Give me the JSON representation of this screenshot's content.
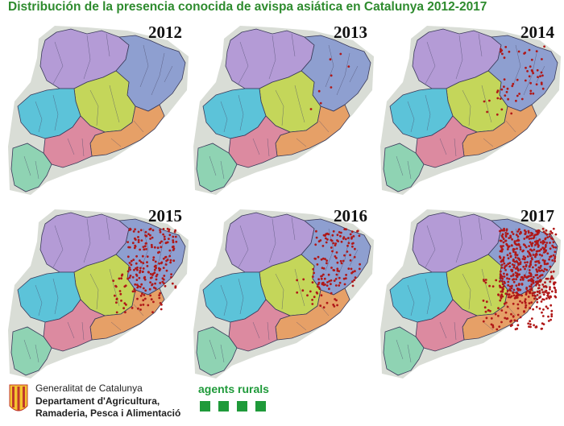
{
  "title": "Distribución de la presencia conocida de avispa asiática en Catalunya 2012-2017",
  "panels": [
    {
      "year": "2012",
      "sightings": 0
    },
    {
      "year": "2013",
      "sightings": 8
    },
    {
      "year": "2014",
      "sightings": 60
    },
    {
      "year": "2015",
      "sightings": 220
    },
    {
      "year": "2016",
      "sightings": 150
    },
    {
      "year": "2017",
      "sightings": 600
    }
  ],
  "colors": {
    "title": "#2e8b2e",
    "girona": "#8e9fd0",
    "lleida_north": "#b49bd6",
    "central": "#c4d65a",
    "lleida_south": "#5cc3d9",
    "barcelona": "#e6a067",
    "tarragona": "#dc8aa0",
    "terres_ebre": "#8fd3b3",
    "dots": "#b01818"
  },
  "footer": {
    "gencat_line1": "Generalitat de Catalunya",
    "gencat_line2": "Departament d'Agricultura,",
    "gencat_line3": "Ramaderia, Pesca i Alimentació",
    "agents_label": "agents rurals"
  }
}
